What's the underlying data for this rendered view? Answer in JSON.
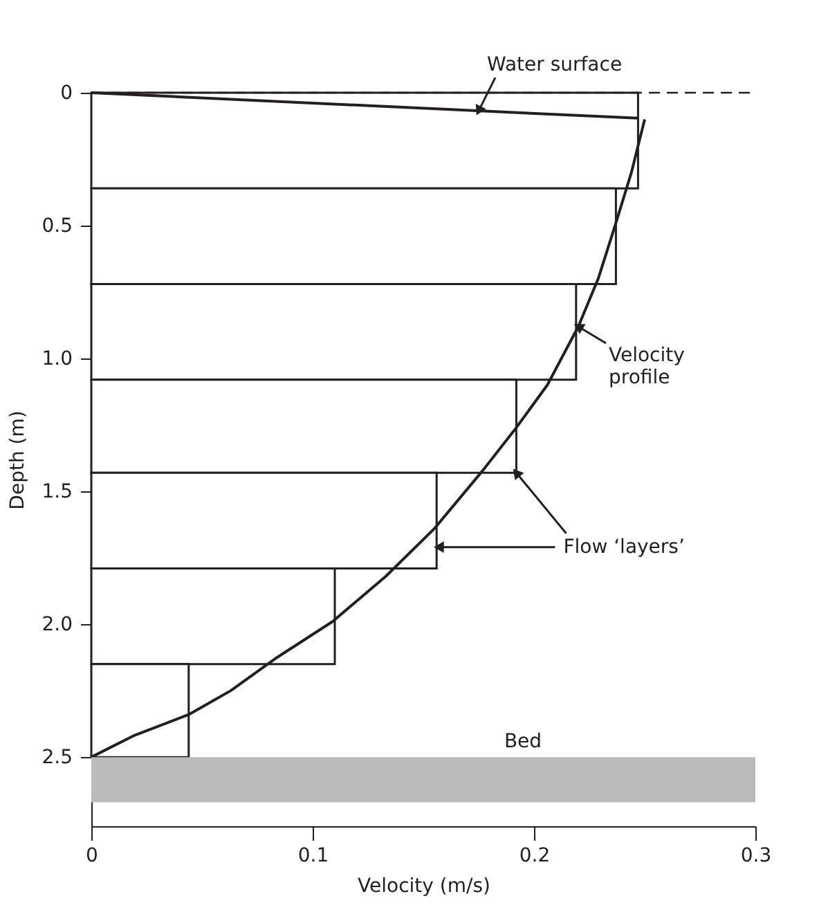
{
  "chart_data": {
    "type": "histogram",
    "orientation": "horizontal",
    "xlabel": "Velocity (m/s)",
    "ylabel": "Depth (m)",
    "xlim": [
      0,
      0.3
    ],
    "xticks": [
      0,
      0.1,
      0.2,
      0.3
    ],
    "ylim": [
      2.76,
      0
    ],
    "yticks": [
      0,
      0.5,
      {
        "value": 1,
        "label": "1.0"
      },
      1.5,
      {
        "value": 2,
        "label": "2.0"
      },
      2.5
    ],
    "series": [
      {
        "color": "#231f20",
        "bins": [
          0,
          0.36,
          0.72,
          1.08,
          1.43,
          1.79,
          2.15,
          2.5
        ],
        "values": [
          0.247,
          0.237,
          0.219,
          0.192,
          0.156,
          0.11,
          0.044
        ]
      },
      {
        "type": "line",
        "color": "#231f20",
        "x": [
          2.5,
          2.42,
          2.34,
          2.25,
          2.13,
          1.99,
          1.82,
          1.64,
          1.42,
          1.26,
          1.1,
          0.88,
          0.7,
          0.49,
          0.3,
          0.2,
          0.1
        ],
        "values": [
          0,
          0.019,
          0.044,
          0.063,
          0.083,
          0.109,
          0.133,
          0.155,
          0.177,
          0.192,
          0.206,
          0.22,
          0.229,
          0.237,
          0.244,
          0.247,
          0.25
        ]
      },
      {
        "type": "line",
        "color": "#231f20",
        "x": [
          0,
          0.096
        ],
        "values": [
          0,
          0.247
        ]
      }
    ],
    "ref_lines": [
      {
        "axis": "y",
        "value": 0,
        "label": null,
        "color": "#231f20",
        "line_style": "dashed"
      }
    ],
    "bands": [
      {
        "axis": "y",
        "from": 2.5,
        "to": 2.67,
        "label": "Bed",
        "color": "#bbbbbb"
      }
    ],
    "annotations": [
      {
        "text": "Water surface",
        "x": 0.175,
        "y": 0.068
      },
      {
        "text": "Velocity profile",
        "x": 0.22,
        "y": 0.88
      },
      {
        "text": "Flow ‘layers’",
        "x": 0.157,
        "y": 1.71
      }
    ],
    "grid": false
  }
}
